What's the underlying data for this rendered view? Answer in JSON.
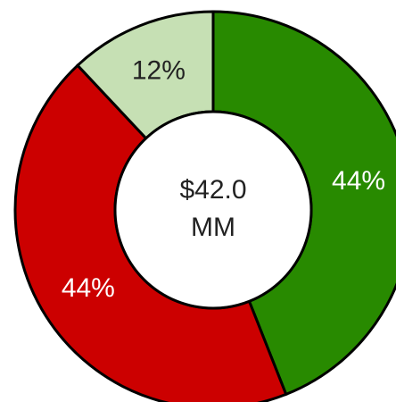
{
  "chart_data": {
    "type": "donut",
    "categories": [
      null,
      null,
      null
    ],
    "values": [
      44,
      44,
      12
    ],
    "value_labels": [
      "44%",
      "44%",
      "12%"
    ],
    "colors": [
      "#288a00",
      "#cc0000",
      "#c6e0b4"
    ],
    "label_colors": [
      "#ffffff",
      "#ffffff",
      "#222222"
    ],
    "center_label": [
      "$42.0",
      "MM"
    ],
    "start_angle": 0,
    "direction": "clockwise"
  }
}
